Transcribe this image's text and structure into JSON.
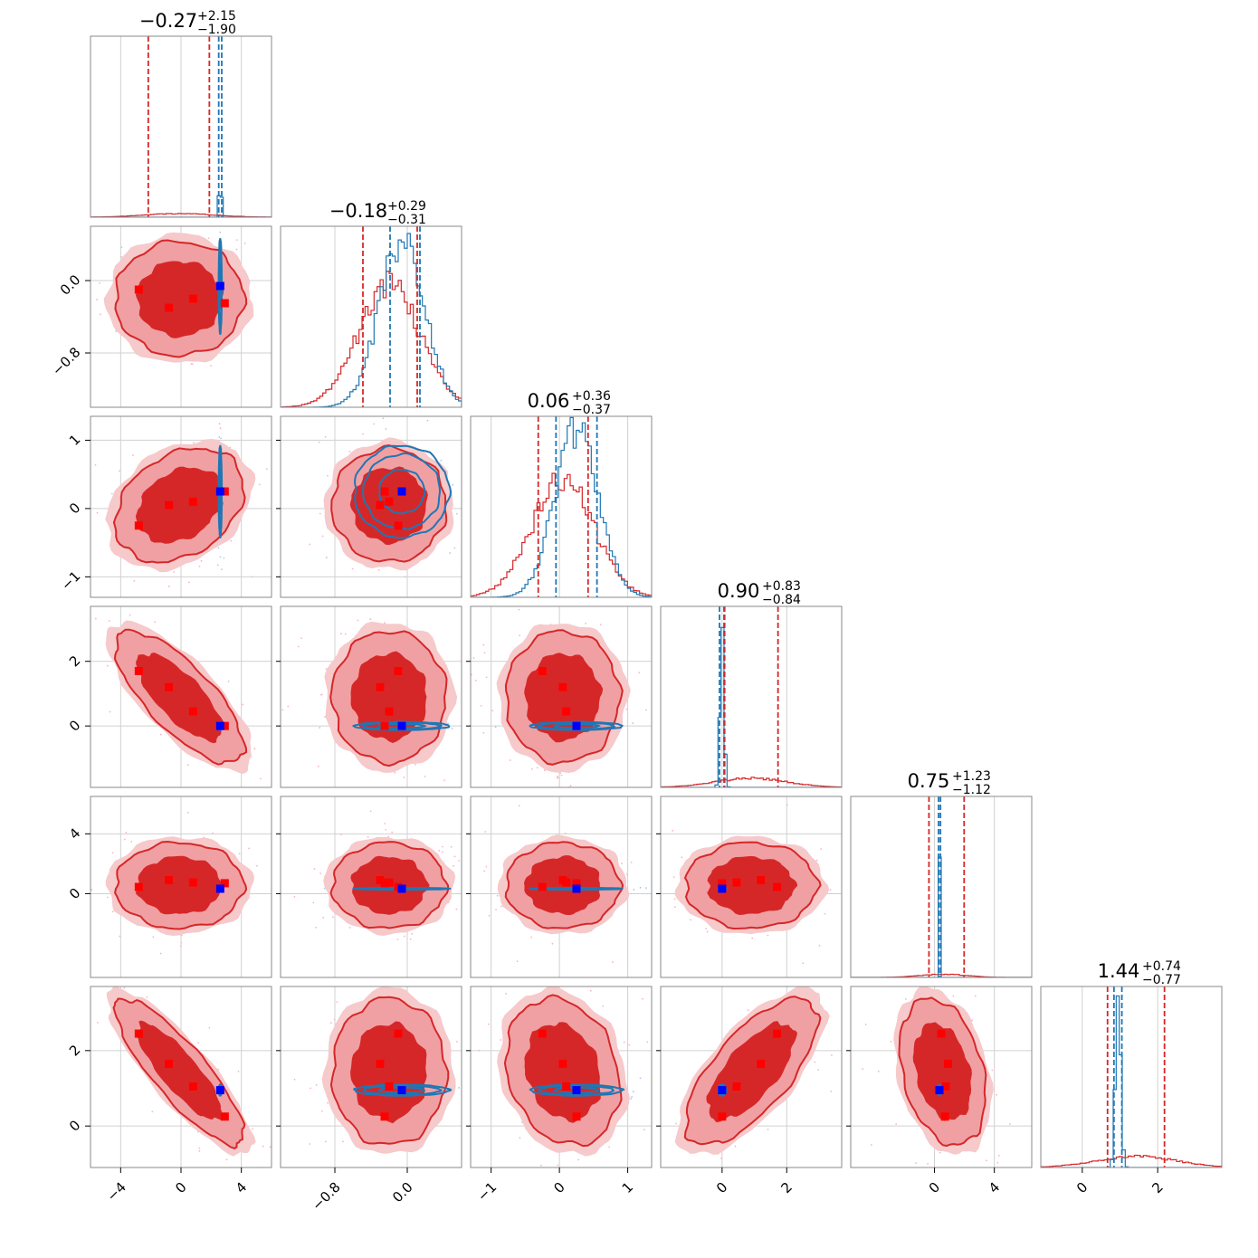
{
  "chart_data": {
    "type": "corner",
    "n_params": 6,
    "grid": true,
    "colors": {
      "red": "#d62728",
      "red_light": "#f0a0a3",
      "blue": "#1f77b4",
      "marker_red": "#ff0000",
      "marker_blue": "#0000ff",
      "grid": "#d0d0d0",
      "scatter_pink": "#f4b6c6",
      "scatter_blue": "#a9c8e6"
    },
    "params": [
      {
        "index": 0,
        "range": [
          -6,
          6
        ],
        "ticks": [
          -4,
          0,
          4
        ],
        "tick_labels": [
          "−4",
          "0",
          "4"
        ],
        "show_y_ticks": false
      },
      {
        "index": 1,
        "range": [
          -1.4,
          0.6
        ],
        "ticks": [
          -0.8,
          0.0
        ],
        "tick_labels": [
          "−0.8",
          "0.0"
        ],
        "show_y_ticks": true
      },
      {
        "index": 2,
        "range": [
          -1.3,
          1.35
        ],
        "ticks": [
          -1,
          0,
          1
        ],
        "tick_labels": [
          "−1",
          "0",
          "1"
        ],
        "show_y_ticks": true
      },
      {
        "index": 3,
        "range": [
          -1.9,
          3.7
        ],
        "ticks": [
          0,
          2
        ],
        "tick_labels": [
          "0",
          "2"
        ],
        "show_y_ticks": true
      },
      {
        "index": 4,
        "range": [
          -5.6,
          6.5
        ],
        "ticks": [
          0,
          4
        ],
        "tick_labels": [
          "0",
          "4"
        ],
        "show_y_ticks": true
      },
      {
        "index": 5,
        "range": [
          -1.1,
          3.7
        ],
        "ticks": [
          0,
          2
        ],
        "tick_labels": [
          "0",
          "2"
        ],
        "show_y_ticks": true
      }
    ],
    "titles": [
      {
        "base": "−0.27",
        "plus": "+2.15",
        "minus": "−1.90"
      },
      {
        "base": "−0.18",
        "plus": "+0.29",
        "minus": "−0.31"
      },
      {
        "base": "0.06",
        "plus": "+0.36",
        "minus": "−0.37"
      },
      {
        "base": "0.90",
        "plus": "+0.83",
        "minus": "−0.84"
      },
      {
        "base": "0.75",
        "plus": "+1.23",
        "minus": "−1.12"
      },
      {
        "base": "1.44",
        "plus": "+0.74",
        "minus": "−0.77"
      }
    ],
    "red_distribution": {
      "median": [
        -0.27,
        -0.18,
        0.06,
        0.9,
        0.75,
        1.44
      ],
      "q16": [
        -2.17,
        -0.49,
        -0.31,
        0.06,
        -0.37,
        0.67
      ],
      "q84": [
        1.88,
        0.11,
        0.42,
        1.73,
        1.98,
        2.18
      ],
      "mean": [
        -0.1,
        -0.2,
        0.05,
        0.9,
        0.55,
        1.44
      ],
      "sd": [
        2.3,
        0.34,
        0.45,
        1.1,
        1.55,
        1.05
      ],
      "correlations": [
        [
          0,
          3,
          -0.75
        ],
        [
          0,
          5,
          -0.85
        ],
        [
          3,
          5,
          0.7
        ],
        [
          0,
          2,
          0.3
        ],
        [
          4,
          5,
          -0.3
        ],
        [
          2,
          5,
          -0.2
        ]
      ]
    },
    "blue_distribution": {
      "q16": [
        2.5,
        -0.19,
        -0.05,
        -0.08,
        0.27,
        0.84
      ],
      "q84": [
        2.7,
        0.14,
        0.55,
        0.08,
        0.4,
        1.05
      ],
      "mean": [
        2.6,
        -0.06,
        0.25,
        0.0,
        0.33,
        0.95
      ],
      "sd": [
        0.05,
        0.25,
        0.32,
        0.06,
        0.03,
        0.07
      ]
    },
    "red_markers": [
      [
        -2.8,
        -0.1,
        -0.25,
        1.7,
        0.45,
        2.45
      ],
      [
        -0.8,
        -0.3,
        0.05,
        1.2,
        0.9,
        1.65
      ],
      [
        0.8,
        -0.2,
        0.1,
        0.45,
        0.75,
        1.05
      ],
      [
        2.9,
        -0.25,
        0.25,
        0.0,
        0.7,
        0.25
      ]
    ],
    "blue_marker": [
      2.6,
      -0.06,
      0.25,
      0.0,
      0.33,
      0.95
    ]
  }
}
